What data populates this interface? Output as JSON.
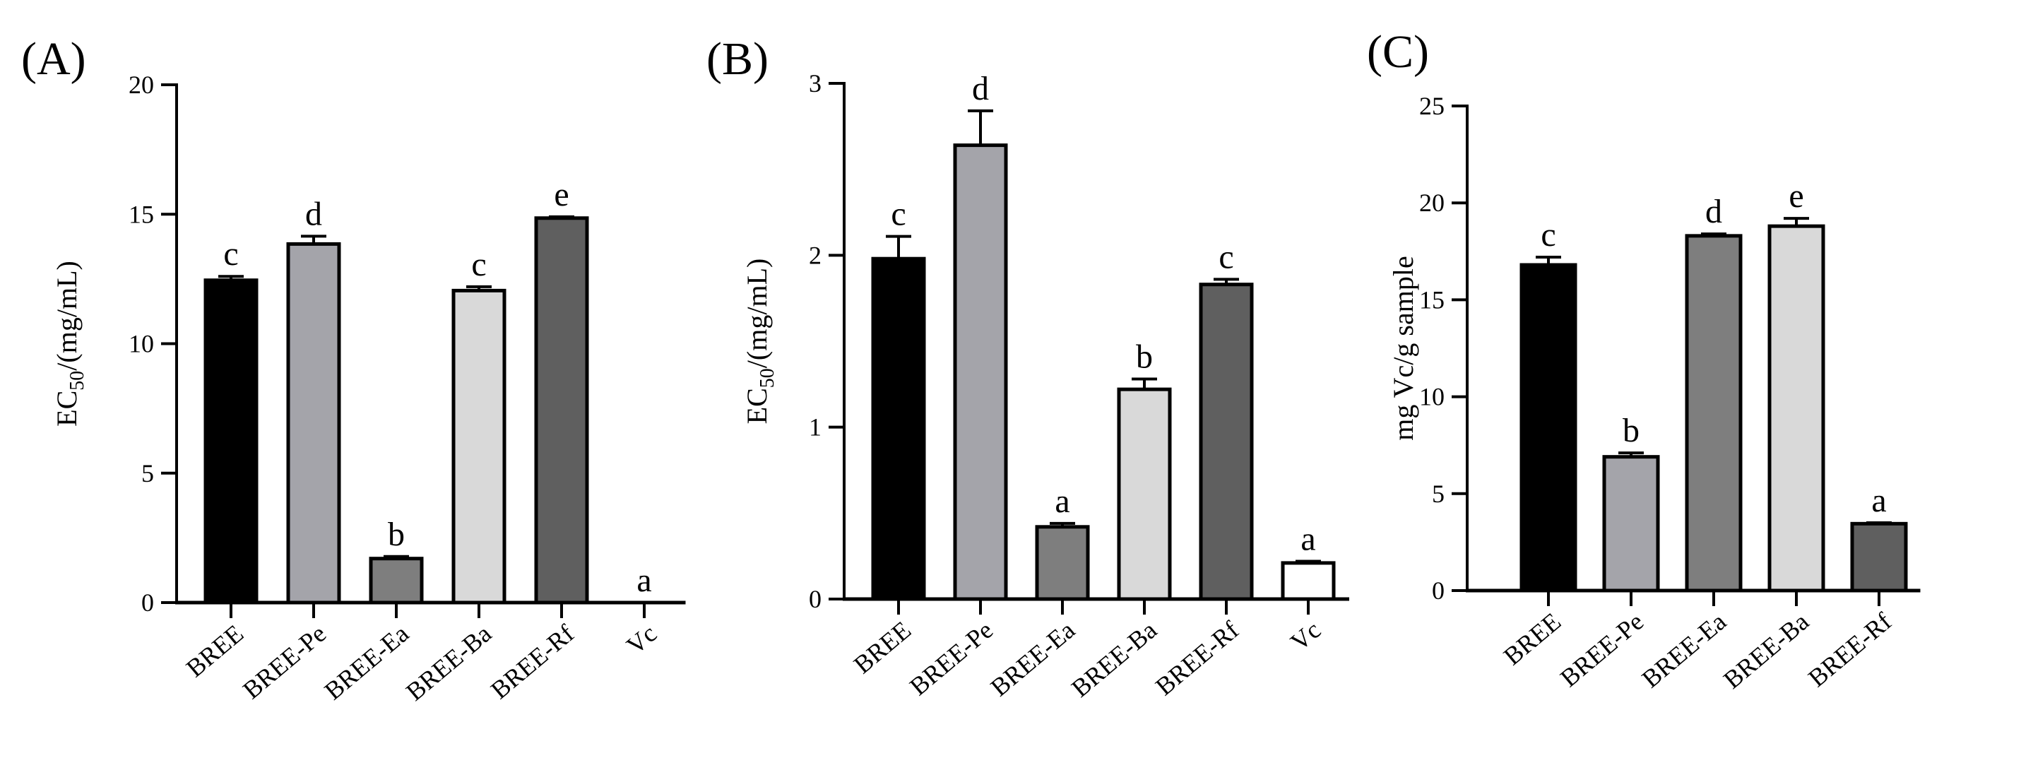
{
  "chart_data": [
    {
      "type": "bar",
      "panel_label": "(A)",
      "ylabel_main": "EC",
      "ylabel_sub": "50",
      "ylabel_tail": "/(mg/mL)",
      "categories": [
        "BREE",
        "BREE-Pe",
        "BREE-Ea",
        "BREE-Ba",
        "BREE-Rf",
        "Vc"
      ],
      "values": [
        12.45,
        13.85,
        1.7,
        12.05,
        14.85,
        0
      ],
      "errors": [
        0.15,
        0.3,
        0.08,
        0.15,
        0.05,
        0
      ],
      "letters": [
        "c",
        "d",
        "b",
        "c",
        "e",
        "a"
      ],
      "colors": [
        "#000000",
        "#a4a4aa",
        "#7e7e7e",
        "#d9d9d9",
        "#5f5f5f",
        "#ffffff"
      ],
      "ylim": [
        0,
        20
      ],
      "yticks": [
        0,
        5,
        10,
        15,
        20
      ],
      "ytick_labels": [
        "0",
        "5",
        "10",
        "15",
        "20"
      ]
    },
    {
      "type": "bar",
      "panel_label": "(B)",
      "ylabel_main": "EC",
      "ylabel_sub": "50",
      "ylabel_tail": "/(mg/mL)",
      "categories": [
        "BREE",
        "BREE-Pe",
        "BREE-Ea",
        "BREE-Ba",
        "BREE-Rf",
        "Vc"
      ],
      "values": [
        1.98,
        2.64,
        0.42,
        1.22,
        1.83,
        0.21
      ],
      "errors": [
        0.13,
        0.2,
        0.02,
        0.06,
        0.03,
        0.01
      ],
      "letters": [
        "c",
        "d",
        "a",
        "b",
        "c",
        "a"
      ],
      "colors": [
        "#000000",
        "#a4a4aa",
        "#7e7e7e",
        "#d9d9d9",
        "#5f5f5f",
        "#ffffff"
      ],
      "ylim": [
        0,
        3
      ],
      "yticks": [
        0,
        1,
        2,
        3
      ],
      "ytick_labels": [
        "0",
        "1",
        "2",
        "3"
      ]
    },
    {
      "type": "bar",
      "panel_label": "(C)",
      "ylabel_main": "mg Vc/g sample",
      "ylabel_sub": "",
      "ylabel_tail": "",
      "categories": [
        "BREE",
        "BREE-Pe",
        "BREE-Ea",
        "BREE-Ba",
        "BREE-Rf"
      ],
      "values": [
        16.8,
        6.9,
        18.3,
        18.8,
        3.45
      ],
      "errors": [
        0.4,
        0.2,
        0.1,
        0.4,
        0.05
      ],
      "letters": [
        "c",
        "b",
        "d",
        "e",
        "a"
      ],
      "colors": [
        "#000000",
        "#a4a4aa",
        "#7e7e7e",
        "#d9d9d9",
        "#5f5f5f"
      ],
      "ylim": [
        0,
        25
      ],
      "yticks": [
        0,
        5,
        10,
        15,
        20,
        25
      ],
      "ytick_labels": [
        "0",
        "5",
        "10",
        "15",
        "20",
        "25"
      ]
    }
  ]
}
